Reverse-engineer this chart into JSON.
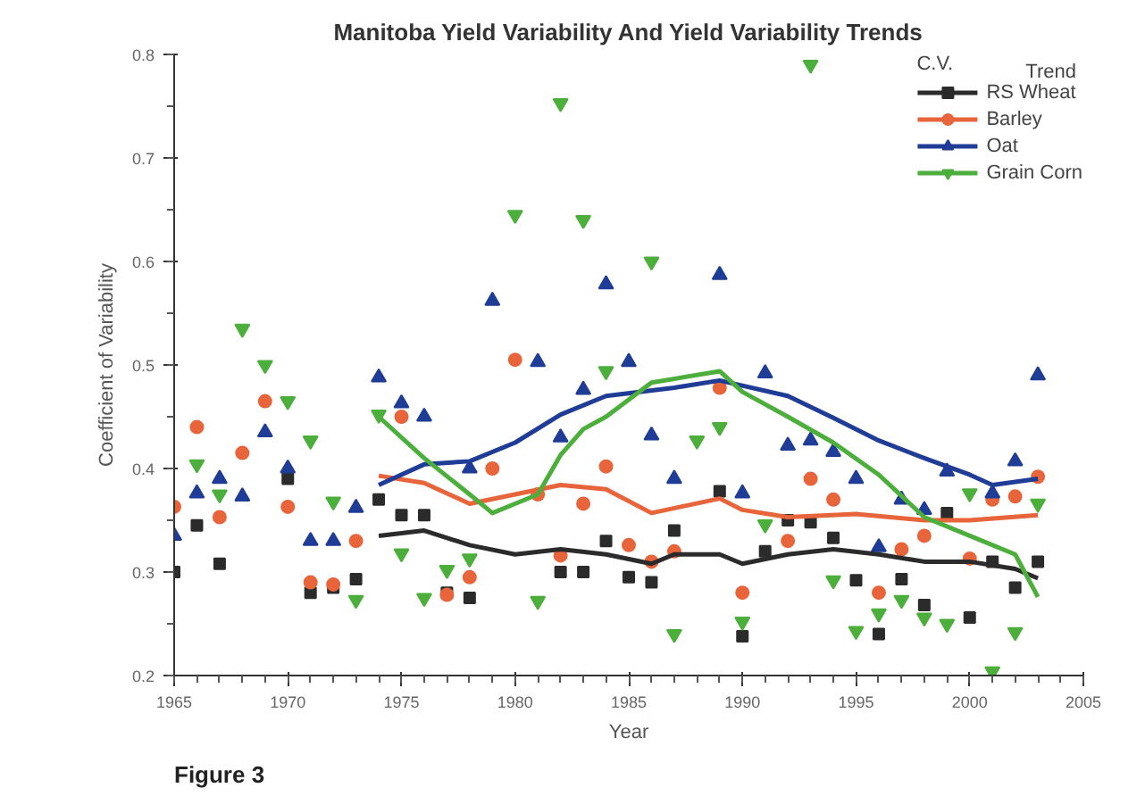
{
  "chart_data": {
    "type": "scatter",
    "title": "Manitoba Yield Variability And Yield Variability Trends",
    "xlabel": "Year",
    "ylabel": "Coefficient of Variability",
    "legend_title": "C.V.",
    "legend": "top right",
    "grid": false,
    "xlim": [
      1965,
      2005
    ],
    "xticks": [
      1965,
      1970,
      1975,
      1980,
      1985,
      1990,
      1995,
      2000,
      2005
    ],
    "ylim": [
      0.2,
      0.8
    ],
    "yticks": [
      0.2,
      0.3,
      0.4,
      0.5,
      0.6,
      0.7,
      0.8
    ],
    "annotations": [
      "Trend",
      "Figure 3"
    ],
    "series": [
      {
        "name": "RS Wheat",
        "marker": "square",
        "color": "#2b2b2b",
        "x": [
          1965,
          1966,
          1967,
          1970,
          1971,
          1972,
          1973,
          1974,
          1975,
          1976,
          1977,
          1978,
          1982,
          1983,
          1984,
          1985,
          1986,
          1987,
          1989,
          1990,
          1991,
          1992,
          1993,
          1994,
          1995,
          1996,
          1997,
          1998,
          1999,
          2000,
          2001,
          2002,
          2003
        ],
        "values": [
          0.3,
          0.345,
          0.308,
          0.39,
          0.28,
          0.285,
          0.293,
          0.37,
          0.355,
          0.355,
          0.28,
          0.275,
          0.3,
          0.3,
          0.33,
          0.295,
          0.29,
          0.34,
          0.378,
          0.238,
          0.32,
          0.35,
          0.348,
          0.333,
          0.292,
          0.24,
          0.293,
          0.268,
          0.357,
          0.256,
          0.31,
          0.285,
          0.31
        ]
      },
      {
        "name": "Barley",
        "marker": "circle",
        "color": "#e8643a",
        "x": [
          1965,
          1966,
          1967,
          1968,
          1969,
          1970,
          1971,
          1972,
          1973,
          1975,
          1977,
          1978,
          1979,
          1980,
          1981,
          1982,
          1983,
          1984,
          1985,
          1986,
          1987,
          1989,
          1990,
          1992,
          1993,
          1994,
          1996,
          1997,
          1998,
          2000,
          2001,
          2002,
          2003
        ],
        "values": [
          0.363,
          0.44,
          0.353,
          0.415,
          0.465,
          0.363,
          0.29,
          0.288,
          0.33,
          0.45,
          0.278,
          0.295,
          0.4,
          0.505,
          0.375,
          0.316,
          0.366,
          0.402,
          0.326,
          0.31,
          0.32,
          0.478,
          0.28,
          0.33,
          0.39,
          0.37,
          0.28,
          0.322,
          0.335,
          0.313,
          0.37,
          0.373,
          0.392
        ]
      },
      {
        "name": "Oat",
        "marker": "triangle",
        "color": "#1f3c96",
        "x": [
          1965,
          1966,
          1967,
          1968,
          1969,
          1970,
          1971,
          1972,
          1973,
          1974,
          1975,
          1976,
          1978,
          1979,
          1981,
          1982,
          1983,
          1984,
          1985,
          1986,
          1987,
          1989,
          1990,
          1991,
          1992,
          1993,
          1994,
          1995,
          1996,
          1997,
          1998,
          1999,
          2001,
          2002,
          2003
        ],
        "values": [
          0.335,
          0.376,
          0.39,
          0.373,
          0.435,
          0.4,
          0.33,
          0.33,
          0.362,
          0.488,
          0.463,
          0.45,
          0.4,
          0.562,
          0.503,
          0.43,
          0.476,
          0.578,
          0.503,
          0.432,
          0.39,
          0.587,
          0.376,
          0.492,
          0.422,
          0.427,
          0.416,
          0.39,
          0.324,
          0.37,
          0.36,
          0.397,
          0.376,
          0.407,
          0.49
        ]
      },
      {
        "name": "Grain Corn",
        "color": "#4caf3c",
        "x": [
          1966,
          1967,
          1968,
          1969,
          1970,
          1971,
          1972,
          1973,
          1974,
          1975,
          1976,
          1977,
          1978,
          1980,
          1981,
          1982,
          1983,
          1984,
          1986,
          1987,
          1988,
          1989,
          1990,
          1991,
          1993,
          1994,
          1995,
          1996,
          1997,
          1998,
          1999,
          2000,
          2001,
          2002,
          2003
        ],
        "values": [
          0.404,
          0.375,
          0.535,
          0.5,
          0.465,
          0.427,
          0.368,
          0.273,
          0.452,
          0.318,
          0.275,
          0.302,
          0.313,
          0.645,
          0.272,
          0.753,
          0.64,
          0.494,
          0.6,
          0.24,
          0.427,
          0.44,
          0.252,
          0.346,
          0.79,
          0.292,
          0.243,
          0.26,
          0.273,
          0.256,
          0.25,
          0.376,
          0.204,
          0.242,
          0.366
        ]
      },
      {
        "type": "line",
        "line_style": "solid",
        "color": "#2b2b2b",
        "x": [
          1974,
          1976,
          1978,
          1980,
          1982,
          1984,
          1986,
          1987,
          1989,
          1990,
          1992,
          1994,
          1996,
          1998,
          2000,
          2002,
          2003
        ],
        "values": [
          0.335,
          0.34,
          0.326,
          0.317,
          0.322,
          0.317,
          0.308,
          0.317,
          0.317,
          0.308,
          0.317,
          0.322,
          0.317,
          0.31,
          0.31,
          0.303,
          0.294
        ]
      },
      {
        "type": "line",
        "line_style": "solid",
        "color": "#e8643a",
        "x": [
          1974,
          1976,
          1978,
          1980,
          1982,
          1984,
          1986,
          1989,
          1990,
          1992,
          1995,
          1998,
          2000,
          2003
        ],
        "values": [
          0.393,
          0.386,
          0.366,
          0.375,
          0.384,
          0.38,
          0.357,
          0.371,
          0.36,
          0.353,
          0.356,
          0.35,
          0.35,
          0.355
        ]
      },
      {
        "type": "line",
        "line_style": "solid",
        "color": "#1f3c96",
        "x": [
          1974,
          1976,
          1978,
          1980,
          1982,
          1984,
          1987,
          1989,
          1992,
          1994,
          1996,
          1998,
          2000,
          2001,
          2003
        ],
        "values": [
          0.384,
          0.404,
          0.407,
          0.425,
          0.452,
          0.47,
          0.478,
          0.485,
          0.47,
          0.449,
          0.427,
          0.41,
          0.394,
          0.384,
          0.39
        ]
      },
      {
        "type": "line",
        "line_style": "solid",
        "color": "#4caf3c",
        "x": [
          1974,
          1976,
          1978,
          1979,
          1980,
          1981,
          1982,
          1983,
          1984,
          1986,
          1989,
          1990,
          1992,
          1994,
          1996,
          1998,
          2000,
          2002,
          2003
        ],
        "values": [
          0.45,
          0.41,
          0.375,
          0.357,
          0.366,
          0.375,
          0.413,
          0.438,
          0.45,
          0.483,
          0.494,
          0.474,
          0.45,
          0.425,
          0.394,
          0.353,
          0.335,
          0.317,
          0.276
        ]
      }
    ]
  }
}
